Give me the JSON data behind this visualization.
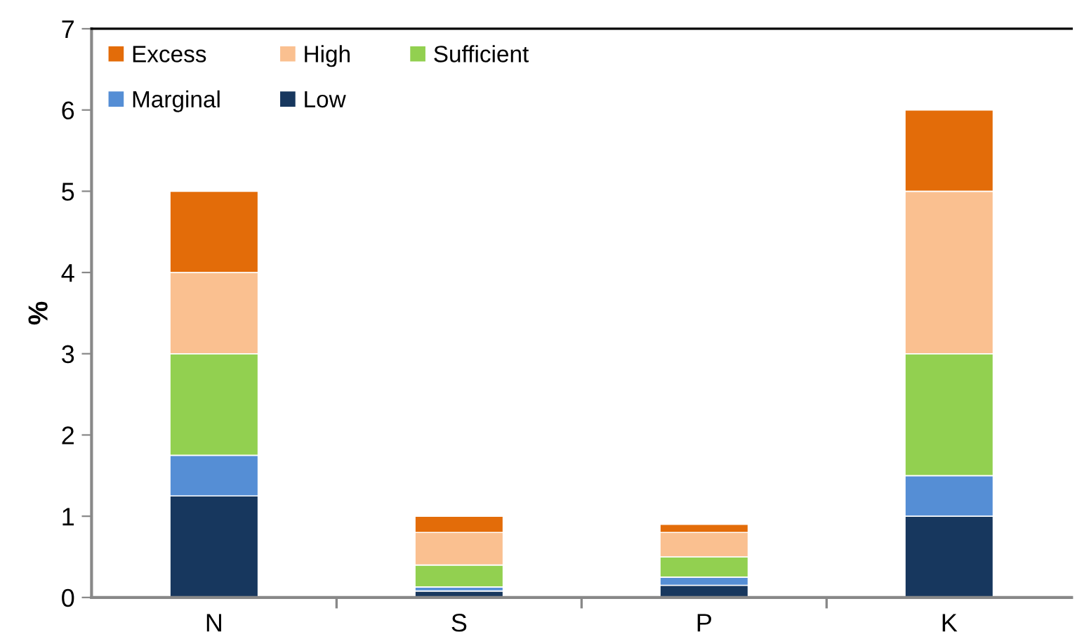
{
  "chart_data": {
    "type": "bar",
    "stacked": true,
    "ylabel": "%",
    "categories": [
      "N",
      "S",
      "P",
      "K"
    ],
    "series": [
      {
        "name": "Low",
        "color": "#17375e",
        "values": [
          1.25,
          0.08,
          0.15,
          1.0
        ]
      },
      {
        "name": "Marginal",
        "color": "#558ed5",
        "values": [
          0.5,
          0.05,
          0.1,
          0.5
        ]
      },
      {
        "name": "Sufficient",
        "color": "#92d050",
        "values": [
          1.25,
          0.27,
          0.25,
          1.5
        ]
      },
      {
        "name": "High",
        "color": "#fac090",
        "values": [
          1.0,
          0.4,
          0.3,
          2.0
        ]
      },
      {
        "name": "Excess",
        "color": "#e36c09",
        "values": [
          1.0,
          0.2,
          0.1,
          1.0
        ]
      }
    ],
    "ylim": [
      0,
      7
    ],
    "yticks": [
      0,
      1,
      2,
      3,
      4,
      5,
      6,
      7
    ],
    "grid": false,
    "legend": "top left"
  }
}
